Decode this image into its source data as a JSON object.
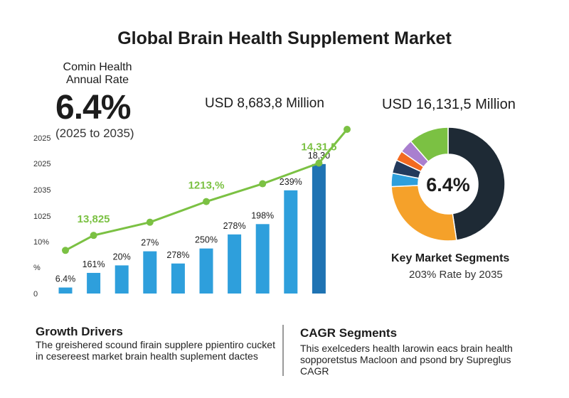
{
  "header": {
    "title": "Global Brain Health Supplement Market",
    "cagr_label_line1": "Comin Health",
    "cagr_label_line2": "Annual Rate",
    "cagr_value": "6.4%",
    "cagr_period": "(2025 to 2035)",
    "usd_left": "USD 8,683,8 Million",
    "usd_right": "USD 16,131,5 Million"
  },
  "chart_data": [
    {
      "type": "bar",
      "title": "",
      "xlabel": "",
      "ylabel": "",
      "y_tick_labels": [
        "0",
        "%",
        "10%",
        "1025",
        "2035",
        "2025",
        "2025"
      ],
      "bar_color": "#2e9fdc",
      "last_bar_color": "#1f73b3",
      "values": [
        6.4,
        22,
        30,
        45,
        32,
        48,
        63,
        74,
        110,
        138
      ],
      "ylim": [
        0,
        150
      ],
      "bar_labels": [
        "6.4%",
        "161%",
        "20%",
        "27%",
        "278%",
        "250%",
        "278%",
        "198%",
        "239%",
        "18,30"
      ],
      "line_series": {
        "color": "#7bc143",
        "values": [
          46,
          62,
          76,
          98,
          117,
          139,
          175
        ],
        "points_at_bars": [
          0,
          1,
          3,
          5,
          7,
          9,
          10
        ],
        "labels": [
          "13,825",
          "1213,%",
          "14,31,5"
        ]
      }
    },
    {
      "type": "pie",
      "style": "donut",
      "center_label": "6.4%",
      "slices": [
        {
          "value": 50,
          "color": "#1e2a35"
        },
        {
          "value": 28,
          "color": "#f5a12a"
        },
        {
          "value": 4,
          "color": "#2e9fdc"
        },
        {
          "value": 4,
          "color": "#233a5c"
        },
        {
          "value": 3,
          "color": "#f26a21"
        },
        {
          "value": 4,
          "color": "#a97fcf"
        },
        {
          "value": 12,
          "color": "#7bc143"
        }
      ]
    }
  ],
  "segments": {
    "title": "Key Market Segments",
    "subtitle": "203% Rate by 2035"
  },
  "growth_drivers": {
    "title": "Growth Drivers",
    "text": "The greishered scound firain supplere ppientiro cucket in cesereest market brain health suplement dactes"
  },
  "cagr_segments": {
    "title": "CAGR Segments",
    "text": "This exelceders health larowin eacs brain health sopporetstus Macloon and psond bry Supreglus CAGR"
  }
}
